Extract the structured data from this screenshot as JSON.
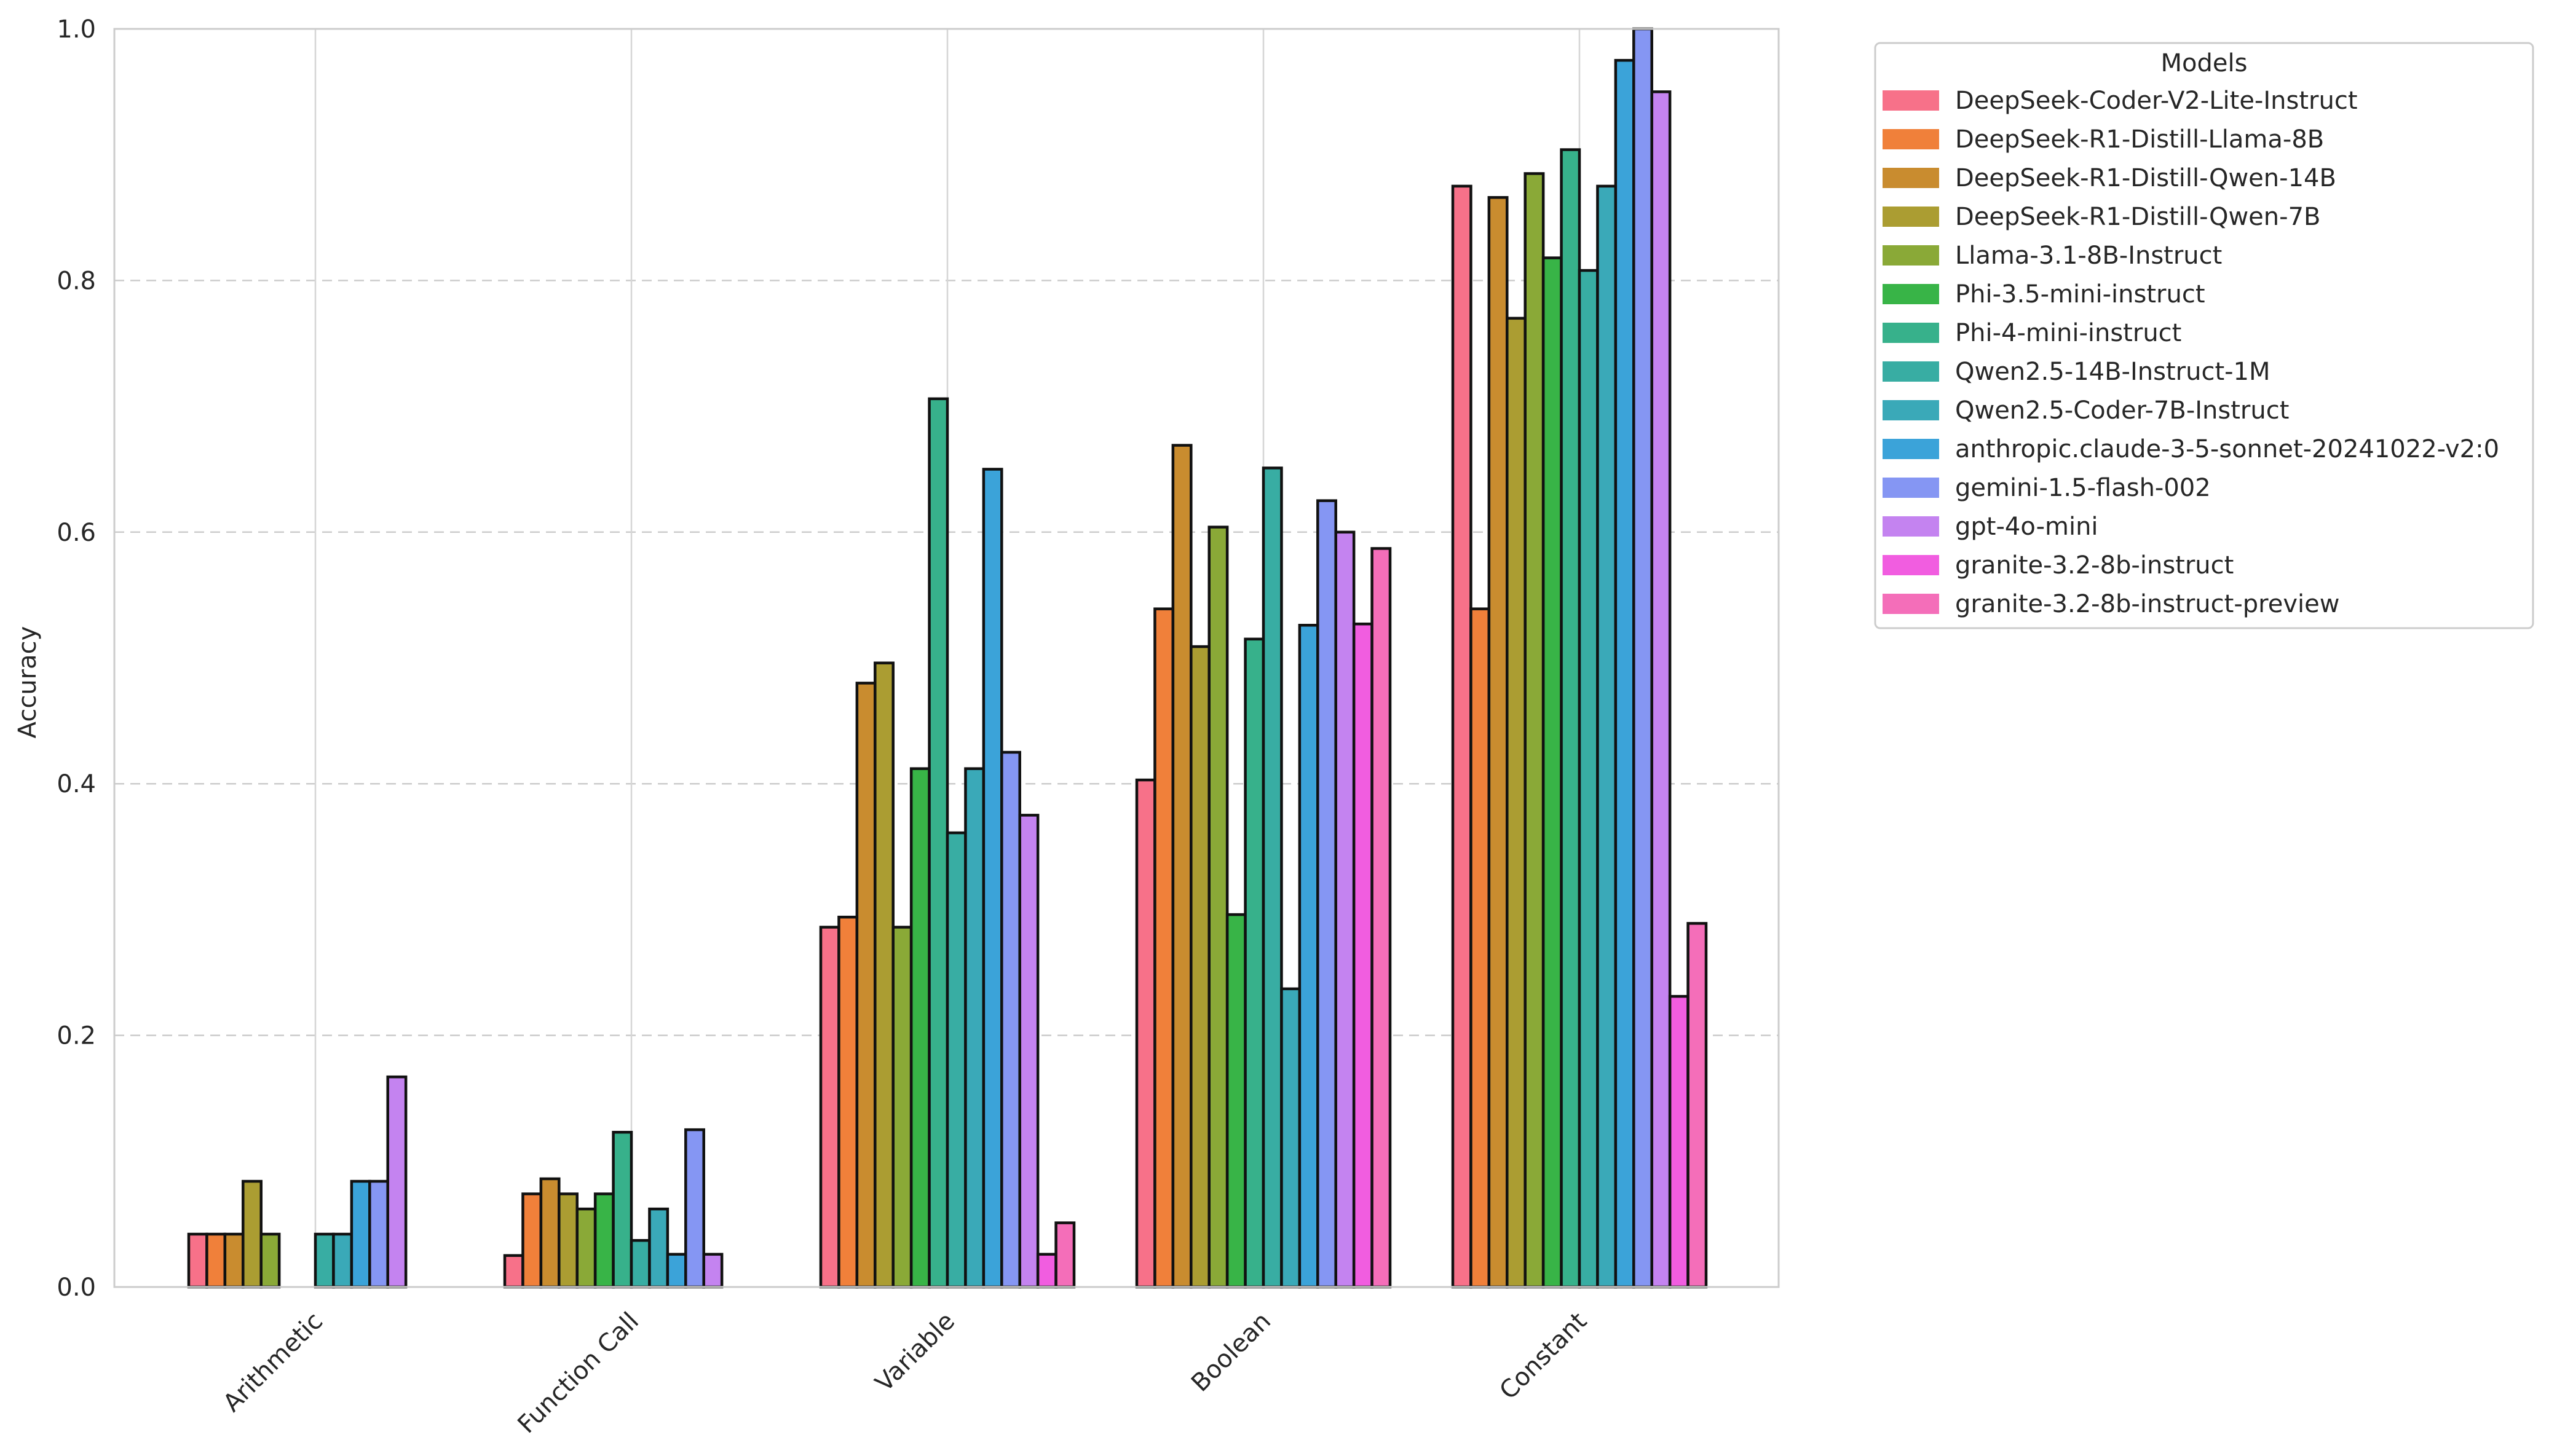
{
  "chart_data": {
    "type": "bar",
    "title": "",
    "xlabel": "",
    "ylabel": "Accuracy",
    "ylim": [
      0,
      1.0
    ],
    "yticks": [
      "0.0",
      "0.2",
      "0.4",
      "0.6",
      "0.8",
      "1.0"
    ],
    "grid": "y-dashed",
    "legend_title": "Models",
    "legend_position": "outside-top-right",
    "categories": [
      "Arithmetic",
      "Function Call",
      "Variable",
      "Boolean",
      "Constant"
    ],
    "series": [
      {
        "name": "DeepSeek-Coder-V2-Lite-Instruct",
        "color": "#f77189",
        "values": [
          0.042,
          0.025,
          0.286,
          0.403,
          0.875
        ]
      },
      {
        "name": "DeepSeek-R1-Distill-Llama-8B",
        "color": "#f0803a",
        "values": [
          0.042,
          0.074,
          0.294,
          0.539,
          0.539
        ]
      },
      {
        "name": "DeepSeek-R1-Distill-Qwen-14B",
        "color": "#c98c2f",
        "values": [
          0.042,
          0.086,
          0.48,
          0.669,
          0.866
        ]
      },
      {
        "name": "DeepSeek-R1-Distill-Qwen-7B",
        "color": "#ab9d32",
        "values": [
          0.084,
          0.074,
          0.496,
          0.509,
          0.77
        ]
      },
      {
        "name": "Llama-3.1-8B-Instruct",
        "color": "#8aa937",
        "values": [
          0.042,
          0.062,
          0.286,
          0.604,
          0.885
        ]
      },
      {
        "name": "Phi-3.5-mini-instruct",
        "color": "#38b447",
        "values": [
          0.0,
          0.074,
          0.412,
          0.296,
          0.818
        ]
      },
      {
        "name": "Phi-4-mini-instruct",
        "color": "#37b18b",
        "values": [
          0.0,
          0.123,
          0.706,
          0.515,
          0.904
        ]
      },
      {
        "name": "Qwen2.5-14B-Instruct-1M",
        "color": "#38ada3",
        "values": [
          0.042,
          0.037,
          0.361,
          0.651,
          0.808
        ]
      },
      {
        "name": "Qwen2.5-Coder-7B-Instruct",
        "color": "#3aa9b8",
        "values": [
          0.042,
          0.062,
          0.412,
          0.237,
          0.875
        ]
      },
      {
        "name": "anthropic.claude-3-5-sonnet-20241022-v2:0",
        "color": "#3ba3d9",
        "values": [
          0.084,
          0.026,
          0.65,
          0.526,
          0.975
        ]
      },
      {
        "name": "gemini-1.5-flash-002",
        "color": "#8596f3",
        "values": [
          0.084,
          0.125,
          0.425,
          0.625,
          1.0
        ]
      },
      {
        "name": "gpt-4o-mini",
        "color": "#c483f0",
        "values": [
          0.167,
          0.026,
          0.375,
          0.6,
          0.95
        ]
      },
      {
        "name": "granite-3.2-8b-instruct",
        "color": "#f15de0",
        "values": [
          0.0,
          0.0,
          0.026,
          0.527,
          0.231
        ]
      },
      {
        "name": "granite-3.2-8b-instruct-preview",
        "color": "#f46eb9",
        "values": [
          0.0,
          0.0,
          0.051,
          0.587,
          0.289
        ]
      }
    ]
  }
}
